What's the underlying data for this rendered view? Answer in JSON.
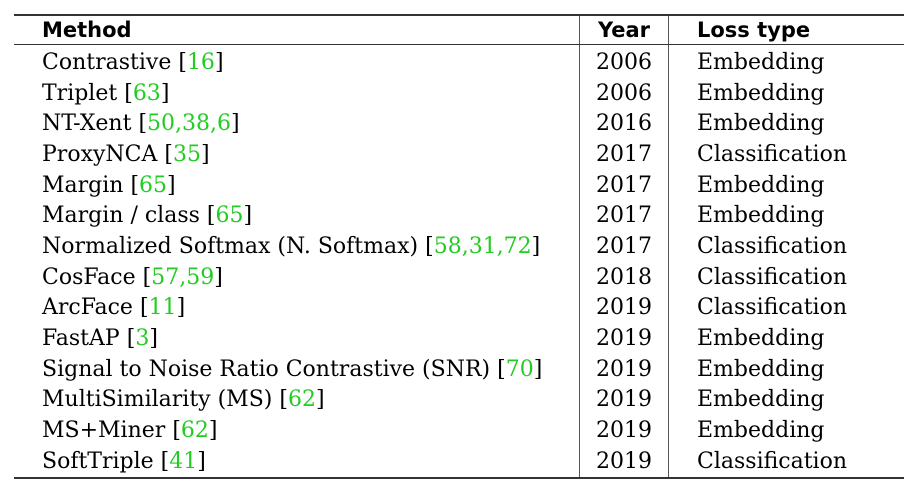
{
  "table": {
    "headers": {
      "method": "Method",
      "year": "Year",
      "loss": "Loss type"
    },
    "rows": [
      {
        "method": "Contrastive",
        "refs": "16",
        "year": "2006",
        "loss": "Embedding"
      },
      {
        "method": "Triplet",
        "refs": "63",
        "year": "2006",
        "loss": "Embedding"
      },
      {
        "method": "NT-Xent",
        "refs": "50,38,6",
        "year": "2016",
        "loss": "Embedding"
      },
      {
        "method": "ProxyNCA",
        "refs": "35",
        "year": "2017",
        "loss": "Classification"
      },
      {
        "method": "Margin",
        "refs": "65",
        "year": "2017",
        "loss": "Embedding"
      },
      {
        "method": "Margin / class",
        "refs": "65",
        "year": "2017",
        "loss": "Embedding"
      },
      {
        "method": "Normalized Softmax (N. Softmax)",
        "refs": "58,31,72",
        "year": "2017",
        "loss": "Classification"
      },
      {
        "method": "CosFace",
        "refs": "57,59",
        "year": "2018",
        "loss": "Classification"
      },
      {
        "method": "ArcFace",
        "refs": "11",
        "year": "2019",
        "loss": "Classification"
      },
      {
        "method": "FastAP",
        "refs": "3",
        "year": "2019",
        "loss": "Embedding"
      },
      {
        "method": "Signal to Noise Ratio Contrastive (SNR)",
        "refs": "70",
        "year": "2019",
        "loss": "Embedding"
      },
      {
        "method": "MultiSimilarity (MS)",
        "refs": "62",
        "year": "2019",
        "loss": "Embedding"
      },
      {
        "method": "MS+Miner",
        "refs": "62",
        "year": "2019",
        "loss": "Embedding"
      },
      {
        "method": "SoftTriple",
        "refs": "41",
        "year": "2019",
        "loss": "Classification"
      }
    ]
  },
  "colors": {
    "citation": "#22cc22",
    "text": "#000000",
    "rule": "#333333"
  }
}
